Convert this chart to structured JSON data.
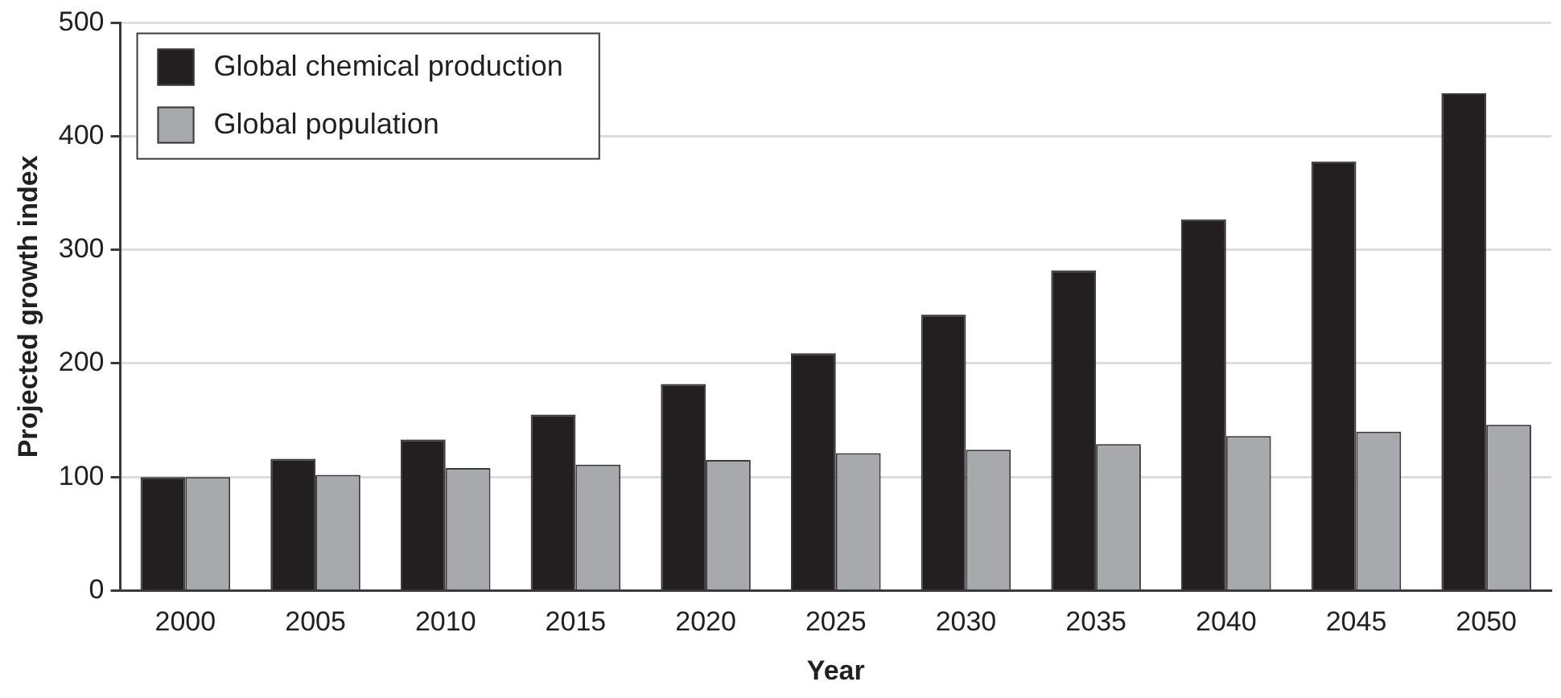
{
  "chart_data": {
    "type": "bar",
    "xlabel": "Year",
    "ylabel": "Projected growth index",
    "categories": [
      "2000",
      "2005",
      "2010",
      "2015",
      "2020",
      "2025",
      "2030",
      "2035",
      "2040",
      "2045",
      "2050"
    ],
    "series": [
      {
        "name": "Global chemical production",
        "color": "#231f20",
        "values": [
          100,
          116,
          133,
          155,
          182,
          209,
          243,
          282,
          327,
          378,
          438
        ]
      },
      {
        "name": "Global population",
        "color": "#a7a9ac",
        "values": [
          100,
          102,
          108,
          111,
          115,
          121,
          124,
          129,
          136,
          140,
          146
        ]
      }
    ],
    "ylim": [
      0,
      500
    ],
    "yticks": [
      0,
      100,
      200,
      300,
      400,
      500
    ],
    "grid": "y",
    "legend": "top left"
  }
}
